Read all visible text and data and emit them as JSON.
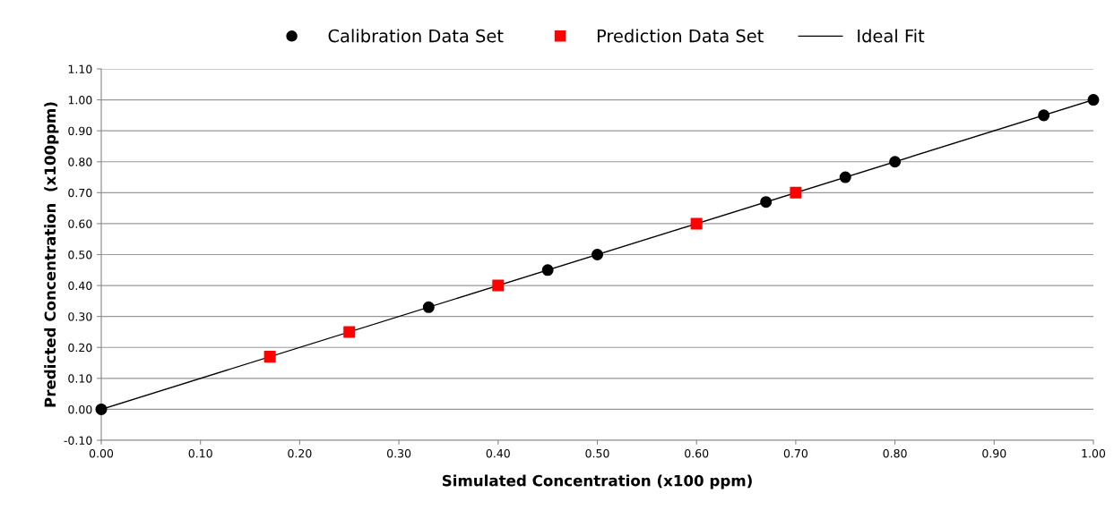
{
  "chart_data": {
    "type": "scatter",
    "xlabel": "Simulated Concentration (x100 ppm)",
    "ylabel": "Predicted Concentration  (x100ppm)",
    "series": [
      {
        "name": "Calibration Data Set",
        "marker": "circle",
        "color": "#000000",
        "x": [
          0,
          0.33,
          0.45,
          0.5,
          0.67,
          0.75,
          0.8,
          0.95,
          1.0
        ],
        "values": [
          0,
          0.33,
          0.45,
          0.5,
          0.67,
          0.75,
          0.8,
          0.95,
          1.0
        ]
      },
      {
        "name": "Prediction Data Set",
        "marker": "square",
        "color": "#ff0000",
        "x": [
          0.17,
          0.25,
          0.4,
          0.6,
          0.7
        ],
        "values": [
          0.17,
          0.25,
          0.4,
          0.6,
          0.7
        ]
      },
      {
        "name": "Ideal Fit",
        "type": "line",
        "marker": "none",
        "color": "#000000",
        "x": [
          0,
          1.0
        ],
        "values": [
          0,
          1.0
        ]
      }
    ],
    "xlim": [
      0,
      1.0
    ],
    "ylim": [
      -0.1,
      1.1
    ],
    "xticks": [
      {
        "value": 0,
        "label": "0.00"
      },
      {
        "value": 0.1,
        "label": "0.10"
      },
      {
        "value": 0.2,
        "label": "0.20"
      },
      {
        "value": 0.3,
        "label": "0.30"
      },
      {
        "value": 0.4,
        "label": "0.40"
      },
      {
        "value": 0.5,
        "label": "0.50"
      },
      {
        "value": 0.6,
        "label": "0.60"
      },
      {
        "value": 0.7,
        "label": "0.70"
      },
      {
        "value": 0.8,
        "label": "0.80"
      },
      {
        "value": 0.9,
        "label": "0.90"
      },
      {
        "value": 1.0,
        "label": "1.00"
      }
    ],
    "yticks": [
      {
        "value": -0.1,
        "label": "-0.10"
      },
      {
        "value": 0,
        "label": "0.00"
      },
      {
        "value": 0.1,
        "label": "0.10"
      },
      {
        "value": 0.2,
        "label": "0.20"
      },
      {
        "value": 0.3,
        "label": "0.30"
      },
      {
        "value": 0.4,
        "label": "0.40"
      },
      {
        "value": 0.5,
        "label": "0.50"
      },
      {
        "value": 0.6,
        "label": "0.60"
      },
      {
        "value": 0.7,
        "label": "0.70"
      },
      {
        "value": 0.8,
        "label": "0.80"
      },
      {
        "value": 0.9,
        "label": "0.90"
      },
      {
        "value": 1.0,
        "label": "1.00"
      },
      {
        "value": 1.1,
        "label": "1.10"
      }
    ],
    "grid": "y",
    "legend": "top"
  }
}
